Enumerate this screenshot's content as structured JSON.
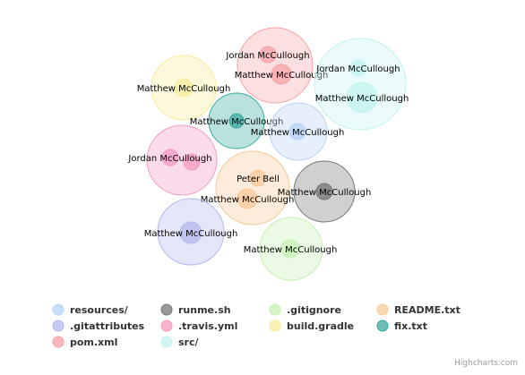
{
  "chart_data": {
    "type": "packed-bubble",
    "credits": "Highcharts.com",
    "series": [
      {
        "name": "resources/",
        "color": "#b7d3f5",
        "points": [
          {
            "label": "Matthew McCullough",
            "size": 1
          }
        ]
      },
      {
        "name": ".gitattributes",
        "color": "#b4b8ee",
        "points": [
          {
            "label": "Matthew McCullough",
            "size": 1
          }
        ]
      },
      {
        "name": "pom.xml",
        "color": "#f7a2a5",
        "points": [
          {
            "label": "Jordan McCullough",
            "size": 1
          },
          {
            "label": "Matthew McCullough",
            "size": 1
          }
        ]
      },
      {
        "name": "runme.sh",
        "color": "#777777",
        "points": [
          {
            "label": "Matthew McCullough",
            "size": 1
          }
        ]
      },
      {
        "name": ".travis.yml",
        "color": "#f59bc2",
        "points": [
          {
            "label": "Jordan McCullough",
            "size": 1
          },
          {
            "label": "",
            "size": 1
          }
        ]
      },
      {
        "name": "src/",
        "color": "#c2f3ee",
        "points": [
          {
            "label": "Jordan McCullough",
            "size": 1
          },
          {
            "label": "Matthew McCullough",
            "size": 2
          }
        ]
      },
      {
        "name": ".gitignore",
        "color": "#c5f1b4",
        "points": [
          {
            "label": "Matthew McCullough",
            "size": 1
          }
        ]
      },
      {
        "name": "build.gradle",
        "color": "#f6ec9a",
        "points": [
          {
            "label": "Matthew McCullough",
            "size": 1
          }
        ]
      },
      {
        "name": "README.txt",
        "color": "#f8c89a",
        "points": [
          {
            "label": "Peter Bell",
            "size": 1
          },
          {
            "label": "Matthew McCullough",
            "size": 2
          }
        ]
      },
      {
        "name": "fix.txt",
        "color": "#3aa99e",
        "points": [
          {
            "label": "Matthew McCullough",
            "size": 1
          }
        ]
      }
    ],
    "legend": {
      "placement": "bottom"
    }
  }
}
